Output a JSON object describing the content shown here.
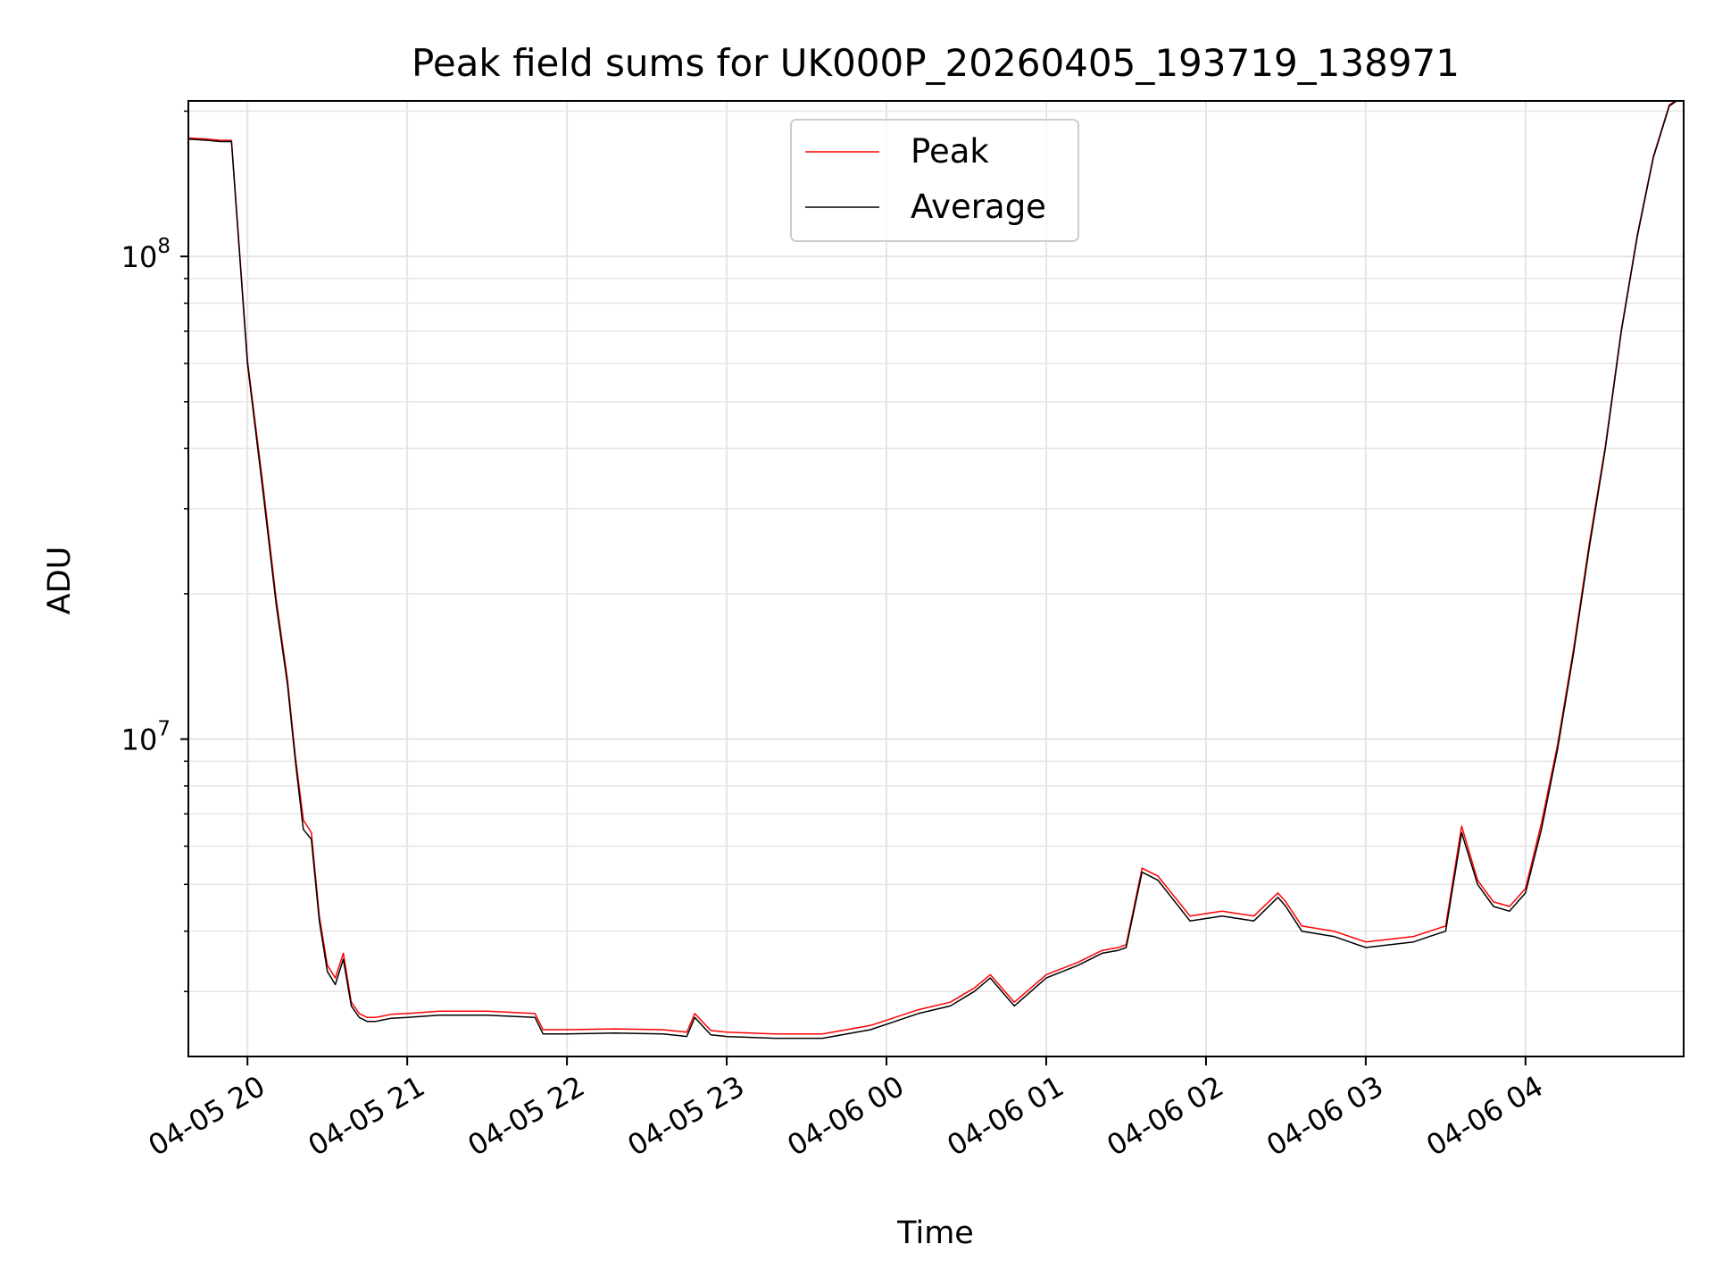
{
  "chart_data": {
    "type": "line",
    "title": "Peak field sums for UK000P_20260405_193719_138971",
    "xlabel": "Time",
    "ylabel": "ADU",
    "yscale": "log",
    "ylim": [
      2200000,
      210000000
    ],
    "xlim_hours": [
      19.63,
      28.99
    ],
    "x_tick_labels": [
      "04-05 20",
      "04-05 21",
      "04-05 22",
      "04-05 23",
      "04-06 00",
      "04-06 01",
      "04-06 02",
      "04-06 03",
      "04-06 04"
    ],
    "x_tick_hours": [
      20,
      21,
      22,
      23,
      24,
      25,
      26,
      27,
      28
    ],
    "y_tick_labels": [
      {
        "base": "10",
        "exp": "8",
        "value": 100000000
      },
      {
        "base": "10",
        "exp": "7",
        "value": 10000000
      }
    ],
    "grid": true,
    "legend": {
      "position": "top-center",
      "entries": [
        "Peak",
        "Average"
      ]
    },
    "colors": {
      "peak": "#ff0000",
      "average": "#000000",
      "grid": "#e5e5e5"
    },
    "x_hours": [
      19.63,
      19.75,
      19.83,
      19.9,
      20.0,
      20.1,
      20.18,
      20.25,
      20.3,
      20.35,
      20.4,
      20.45,
      20.5,
      20.55,
      20.6,
      20.65,
      20.7,
      20.75,
      20.8,
      20.85,
      20.9,
      21.0,
      21.2,
      21.5,
      21.8,
      21.85,
      22.0,
      22.3,
      22.6,
      22.75,
      22.8,
      22.9,
      23.0,
      23.3,
      23.6,
      23.9,
      24.2,
      24.4,
      24.55,
      24.65,
      24.8,
      25.0,
      25.2,
      25.35,
      25.45,
      25.5,
      25.6,
      25.7,
      25.9,
      26.1,
      26.3,
      26.45,
      26.5,
      26.6,
      26.8,
      27.0,
      27.3,
      27.4,
      27.5,
      27.6,
      27.7,
      27.8,
      27.9,
      28.0,
      28.1,
      28.2,
      28.3,
      28.4,
      28.5,
      28.6,
      28.7,
      28.8,
      28.9,
      28.99
    ],
    "series": [
      {
        "name": "Average",
        "values": [
          175000000,
          174000000,
          173000000,
          173000000,
          60000000,
          32000000,
          19000000,
          13000000,
          9000000,
          6500000,
          6200000,
          4200000,
          3300000,
          3100000,
          3500000,
          2800000,
          2650000,
          2600000,
          2600000,
          2620000,
          2640000,
          2650000,
          2680000,
          2680000,
          2650000,
          2450000,
          2450000,
          2460000,
          2450000,
          2420000,
          2650000,
          2440000,
          2420000,
          2400000,
          2400000,
          2500000,
          2700000,
          2800000,
          3000000,
          3200000,
          2800000,
          3200000,
          3400000,
          3600000,
          3650000,
          3700000,
          5300000,
          5100000,
          4200000,
          4300000,
          4200000,
          4700000,
          4500000,
          4000000,
          3900000,
          3700000,
          3800000,
          3900000,
          4000000,
          6400000,
          5000000,
          4500000,
          4400000,
          4800000,
          6500000,
          9500000,
          15000000,
          25000000,
          40000000,
          70000000,
          110000000,
          160000000,
          205000000,
          215000000
        ]
      },
      {
        "name": "Peak",
        "values": [
          176000000,
          175000000,
          174000000,
          174000000,
          61000000,
          33000000,
          19500000,
          13300000,
          9200000,
          6800000,
          6400000,
          4300000,
          3400000,
          3200000,
          3600000,
          2850000,
          2700000,
          2650000,
          2650000,
          2670000,
          2690000,
          2700000,
          2730000,
          2730000,
          2700000,
          2500000,
          2500000,
          2510000,
          2500000,
          2470000,
          2700000,
          2490000,
          2470000,
          2450000,
          2450000,
          2550000,
          2750000,
          2850000,
          3050000,
          3250000,
          2850000,
          3250000,
          3450000,
          3650000,
          3700000,
          3750000,
          5400000,
          5200000,
          4300000,
          4400000,
          4300000,
          4800000,
          4600000,
          4100000,
          4000000,
          3800000,
          3900000,
          4000000,
          4100000,
          6600000,
          5100000,
          4600000,
          4500000,
          4900000,
          6700000,
          9700000,
          15300000,
          25500000,
          40500000,
          70500000,
          111000000,
          161000000,
          206000000,
          216000000
        ]
      }
    ]
  }
}
